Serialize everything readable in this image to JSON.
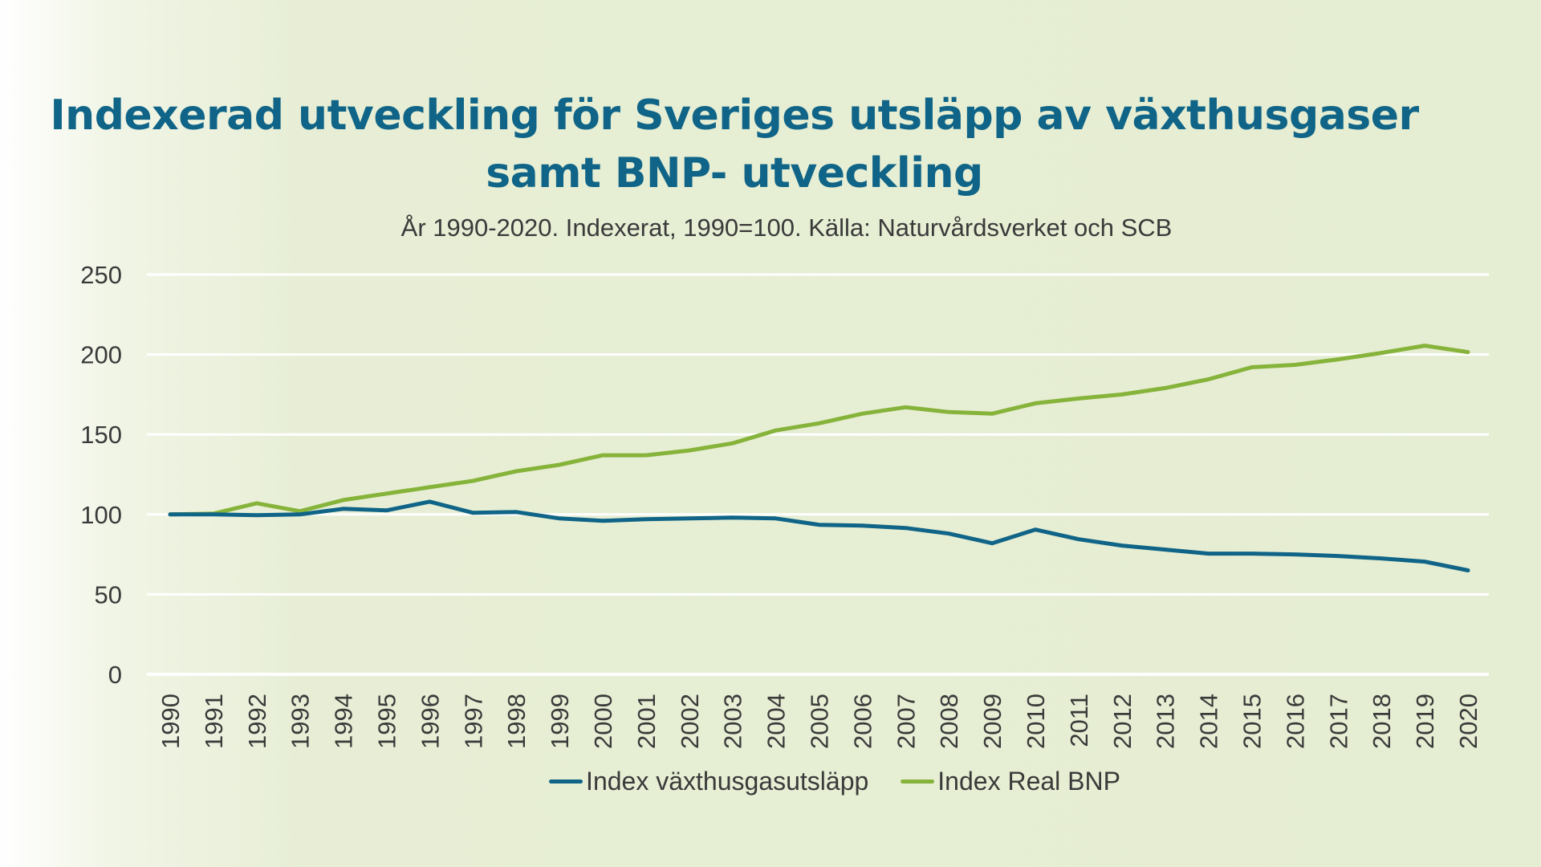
{
  "title": {
    "line1": "Indexerad utveckling för Sveriges utsläpp av växthusgaser",
    "line2": "samt BNP- utveckling"
  },
  "subtitle": "År 1990-2020. Indexerat, 1990=100. Källa: Naturvårdsverket och SCB",
  "colors": {
    "title": "#0f6487",
    "series_emissions": "#0f6487",
    "series_gdp": "#86b33a",
    "gridline": "#ffffff",
    "text": "#3a3a3a"
  },
  "chart_data": {
    "type": "line",
    "title": "Indexerad utveckling för Sveriges utsläpp av växthusgaser samt BNP- utveckling",
    "subtitle": "År 1990-2020. Indexerat, 1990=100. Källa: Naturvårdsverket och SCB",
    "xlabel": "",
    "ylabel": "",
    "ylim": [
      0,
      250
    ],
    "yticks": [
      0,
      50,
      100,
      150,
      200,
      250
    ],
    "grid": true,
    "legend": "bottom",
    "x": [
      "1990",
      "1991",
      "1992",
      "1993",
      "1994",
      "1995",
      "1996",
      "1997",
      "1998",
      "1999",
      "2000",
      "2001",
      "2002",
      "2003",
      "2004",
      "2005",
      "2006",
      "2007",
      "2008",
      "2009",
      "2010",
      "2011",
      "2012",
      "2013",
      "2014",
      "2015",
      "2016",
      "2017",
      "2018",
      "2019",
      "2020"
    ],
    "series": [
      {
        "name": "Index växthusgasutsläpp",
        "color": "#0f6487",
        "values": [
          100,
          100,
          99.5,
          100,
          103.5,
          102.5,
          108,
          101,
          101.5,
          97.5,
          96,
          97,
          97.5,
          98,
          97.5,
          93.5,
          93,
          91.5,
          88,
          82,
          90.5,
          84.5,
          80.5,
          78,
          75.5,
          75.5,
          75,
          74,
          72.5,
          70.5,
          65
        ]
      },
      {
        "name": "Index Real BNP",
        "color": "#86b33a",
        "values": [
          100,
          100.5,
          107,
          102,
          109,
          113,
          117,
          121,
          127,
          131,
          137,
          137,
          140,
          144.5,
          152.5,
          157,
          163,
          167,
          164,
          163,
          169.5,
          172.5,
          175,
          179,
          184.5,
          192,
          193.5,
          197,
          201,
          205.5,
          201.5
        ]
      }
    ]
  }
}
